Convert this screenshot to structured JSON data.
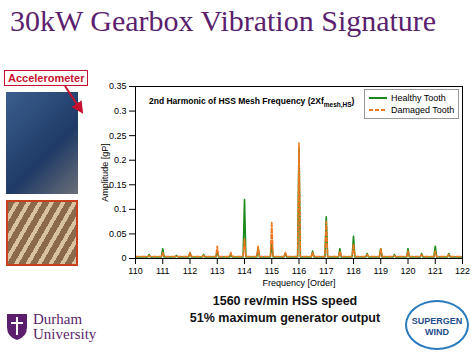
{
  "chart_data": {
    "type": "line",
    "title": "30kW Gearbox Vibration Signature",
    "x_label": "Frequency [Order]",
    "y_label": "Amplitude [gP]",
    "annotation": "2nd Harmonic of HSS Mesh Frequency (2Xf",
    "annotation_subscript": "mesh,HS",
    "annotation_end": ")",
    "x": [
      110,
      110.45,
      110.5,
      110.55,
      110.95,
      111,
      111.05,
      111.45,
      111.5,
      111.55,
      111.95,
      112,
      112.05,
      112.45,
      112.5,
      112.55,
      112.95,
      113,
      113.05,
      113.45,
      113.5,
      113.55,
      113.95,
      114,
      114.05,
      114.45,
      114.5,
      114.55,
      114.95,
      115,
      115.05,
      115.45,
      115.5,
      115.55,
      115.95,
      116,
      116.05,
      116.45,
      116.5,
      116.55,
      116.95,
      117,
      117.05,
      117.45,
      117.5,
      117.55,
      117.95,
      118,
      118.05,
      118.45,
      118.5,
      118.55,
      118.95,
      119,
      119.05,
      119.45,
      119.5,
      119.55,
      119.95,
      120,
      120.05,
      120.45,
      120.5,
      120.55,
      120.95,
      121,
      121.05,
      121.45,
      121.5,
      121.55,
      122
    ],
    "series": [
      {
        "name": "Healthy Tooth",
        "color": "#1a8a1a",
        "line_style": "solid",
        "values": [
          0.003,
          0.003,
          0.008,
          0.003,
          0.003,
          0.02,
          0.003,
          0.003,
          0.006,
          0.003,
          0.003,
          0.012,
          0.003,
          0.003,
          0.008,
          0.003,
          0.003,
          0.015,
          0.003,
          0.003,
          0.008,
          0.003,
          0.003,
          0.12,
          0.003,
          0.003,
          0.02,
          0.003,
          0.003,
          0.03,
          0.003,
          0.003,
          0.01,
          0.003,
          0.003,
          0.225,
          0.003,
          0.003,
          0.015,
          0.003,
          0.003,
          0.085,
          0.003,
          0.003,
          0.02,
          0.003,
          0.003,
          0.045,
          0.003,
          0.003,
          0.01,
          0.003,
          0.003,
          0.02,
          0.003,
          0.003,
          0.008,
          0.003,
          0.003,
          0.02,
          0.003,
          0.003,
          0.01,
          0.003,
          0.003,
          0.025,
          0.003,
          0.003,
          0.01,
          0.003,
          0.003
        ]
      },
      {
        "name": "Damaged Tooth",
        "color": "#f07820",
        "line_style": "dashed",
        "values": [
          0.004,
          0.004,
          0.006,
          0.004,
          0.004,
          0.012,
          0.004,
          0.004,
          0.005,
          0.004,
          0.004,
          0.012,
          0.004,
          0.004,
          0.006,
          0.004,
          0.004,
          0.025,
          0.004,
          0.004,
          0.012,
          0.004,
          0.004,
          0.04,
          0.004,
          0.004,
          0.025,
          0.004,
          0.004,
          0.075,
          0.004,
          0.004,
          0.012,
          0.004,
          0.004,
          0.235,
          0.004,
          0.004,
          0.012,
          0.004,
          0.004,
          0.075,
          0.004,
          0.004,
          0.015,
          0.004,
          0.004,
          0.03,
          0.004,
          0.004,
          0.008,
          0.004,
          0.004,
          0.02,
          0.004,
          0.004,
          0.006,
          0.004,
          0.004,
          0.015,
          0.004,
          0.004,
          0.008,
          0.004,
          0.004,
          0.015,
          0.004,
          0.004,
          0.008,
          0.004,
          0.004
        ]
      }
    ],
    "xlim": [
      110,
      122
    ],
    "xticks": [
      110,
      111,
      112,
      113,
      114,
      115,
      116,
      117,
      118,
      119,
      120,
      121,
      122
    ],
    "ylim": [
      0,
      0.35
    ],
    "yticks": [
      0,
      0.05,
      0.1,
      0.15,
      0.2,
      0.25,
      0.3,
      0.35
    ],
    "grid": false,
    "legend": "top-right"
  },
  "slide": {
    "accelerometer_label": "Accelerometer",
    "notes": [
      "1560 rev/min HSS speed",
      "51% maximum generator output"
    ],
    "durham_logo": [
      "Durham",
      "University"
    ],
    "supergen_logo": [
      "SUPERGEN",
      "WIND"
    ]
  }
}
